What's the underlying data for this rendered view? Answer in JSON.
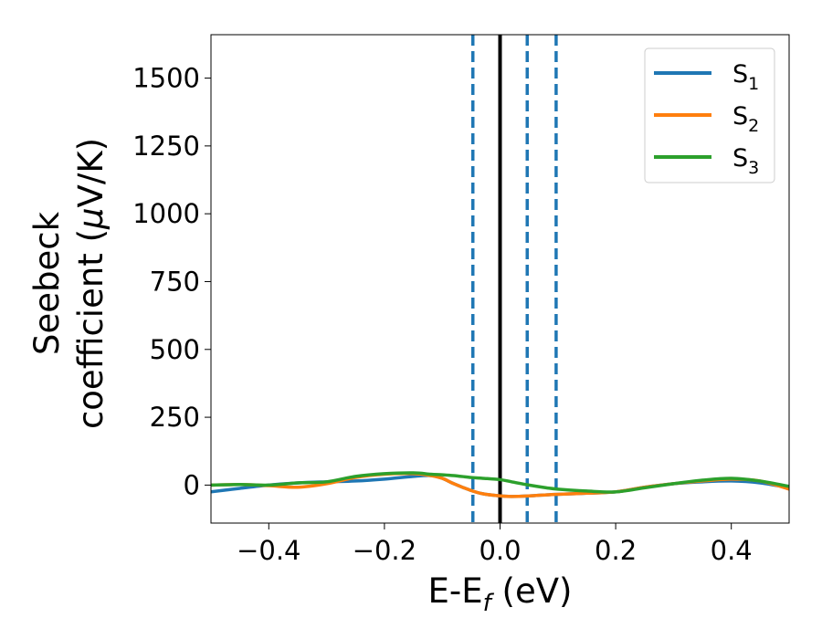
{
  "chart_data": {
    "type": "line",
    "xlabel": "E-E",
    "xlabel_sub": "f",
    "xlabel_unit": " (eV)",
    "ylabel_line1": "Seebeck",
    "ylabel_line2": "coefficient  (",
    "ylabel_mu": "μ",
    "ylabel_unit": "V/K)",
    "xlim": [
      -0.5,
      0.5
    ],
    "ylim": [
      -140,
      1660
    ],
    "x_ticks": [
      -0.4,
      -0.2,
      0.0,
      0.2,
      0.4
    ],
    "x_tick_labels": [
      "−0.4",
      "−0.2",
      "0.0",
      "0.2",
      "0.4"
    ],
    "y_ticks": [
      0,
      250,
      500,
      750,
      1000,
      1250,
      1500
    ],
    "y_tick_labels": [
      "0",
      "250",
      "500",
      "750",
      "1000",
      "1250",
      "1500"
    ],
    "grid": false,
    "legend_position": "top-right",
    "vertical_lines": [
      {
        "x": 0.0,
        "style": "solid",
        "color": "#000000"
      },
      {
        "x": -0.047,
        "style": "dashed",
        "color": "#1f77b4"
      },
      {
        "x": 0.047,
        "style": "dashed",
        "color": "#1f77b4"
      },
      {
        "x": 0.097,
        "style": "dashed",
        "color": "#1f77b4"
      }
    ],
    "series": [
      {
        "name": "S",
        "sub": "1",
        "color": "#1f77b4",
        "x": [
          -0.5,
          -0.45,
          -0.4,
          -0.35,
          -0.3,
          -0.25,
          -0.2,
          -0.15,
          -0.12,
          -0.1,
          -0.08,
          -0.05,
          -0.03,
          0.0,
          0.02,
          0.05,
          0.08,
          0.1,
          0.15,
          0.2,
          0.25,
          0.3,
          0.35,
          0.4,
          0.45,
          0.5
        ],
        "y": [
          -25,
          -12,
          0,
          8,
          12,
          15,
          22,
          32,
          35,
          25,
          5,
          -20,
          -32,
          -40,
          -42,
          -40,
          -36,
          -34,
          -30,
          -25,
          -8,
          5,
          12,
          15,
          8,
          -10
        ]
      },
      {
        "name": "S",
        "sub": "2",
        "color": "#ff7f0e",
        "x": [
          -0.5,
          -0.45,
          -0.4,
          -0.35,
          -0.3,
          -0.25,
          -0.2,
          -0.15,
          -0.12,
          -0.1,
          -0.08,
          -0.05,
          -0.03,
          0.0,
          0.02,
          0.05,
          0.08,
          0.1,
          0.15,
          0.2,
          0.25,
          0.3,
          0.35,
          0.4,
          0.45,
          0.5
        ],
        "y": [
          0,
          2,
          -2,
          -8,
          5,
          28,
          40,
          42,
          35,
          25,
          5,
          -20,
          -32,
          -40,
          -42,
          -40,
          -36,
          -34,
          -30,
          -25,
          -8,
          5,
          15,
          22,
          15,
          -15
        ]
      },
      {
        "name": "S",
        "sub": "3",
        "color": "#2ca02c",
        "x": [
          -0.5,
          -0.45,
          -0.4,
          -0.35,
          -0.3,
          -0.25,
          -0.2,
          -0.15,
          -0.12,
          -0.1,
          -0.08,
          -0.05,
          -0.03,
          0.0,
          0.02,
          0.05,
          0.08,
          0.1,
          0.15,
          0.2,
          0.25,
          0.3,
          0.35,
          0.4,
          0.45,
          0.5
        ],
        "y": [
          0,
          2,
          0,
          8,
          12,
          32,
          42,
          45,
          40,
          38,
          35,
          28,
          25,
          20,
          12,
          0,
          -10,
          -15,
          -22,
          -25,
          -10,
          5,
          18,
          25,
          15,
          -5
        ]
      }
    ]
  }
}
